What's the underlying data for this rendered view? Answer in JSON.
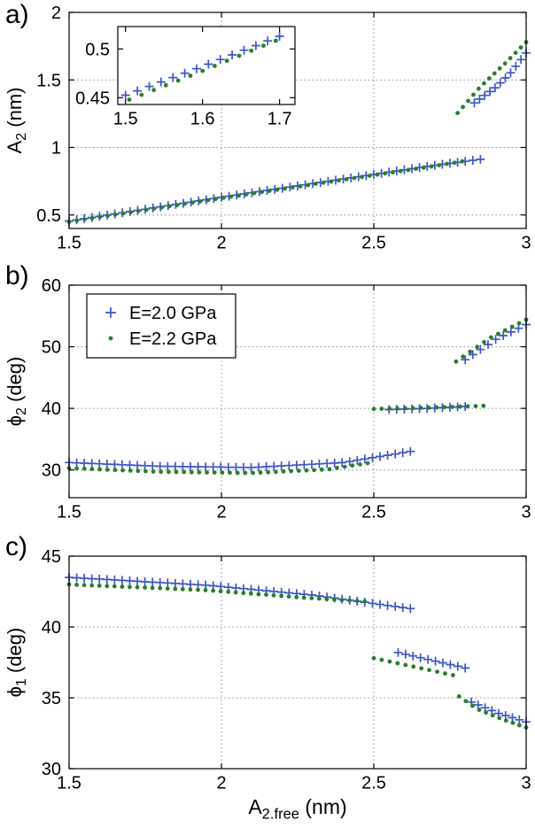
{
  "figure": {
    "background": "#ffffff",
    "axis_color": "#000000",
    "grid_color": "#8c8c8c",
    "panel_letters": [
      "a)",
      "b)",
      "c)"
    ],
    "xlabel": {
      "main": "A",
      "sub": "2.free",
      "rest": " (nm)"
    }
  },
  "legend": {
    "items": [
      {
        "label": "E=2.0 GPa",
        "marker": "plus",
        "color": "#3f56c6"
      },
      {
        "label": "E=2.2 GPa",
        "marker": "dot",
        "color": "#2b7e2b"
      }
    ]
  },
  "chart_data": [
    {
      "type": "scatter",
      "panel": "a",
      "ylabel": {
        "main": "A",
        "sub": "2",
        "rest": " (nm)"
      },
      "xlim": [
        1.5,
        3.0
      ],
      "ylim": [
        0.4,
        2.0
      ],
      "xticks": [
        1.5,
        2,
        2.5,
        3
      ],
      "xtick_labels": [
        "1.5",
        "2",
        "2.5",
        "3"
      ],
      "yticks": [
        0.5,
        1,
        1.5,
        2
      ],
      "ytick_labels": [
        "0.5",
        "1",
        "1.5",
        "2"
      ],
      "grid": true,
      "series": [
        {
          "name": "E=2.0 GPa",
          "marker": "plus",
          "color": "#3f56c6",
          "branches": [
            {
              "n": 55,
              "pts": [
                [
                  1.5,
                  0.455
                ],
                [
                  2.0,
                  0.63
                ],
                [
                  2.5,
                  0.8
                ],
                [
                  2.7,
                  0.868
                ],
                [
                  2.85,
                  0.912
                ]
              ]
            },
            {
              "n": 11,
              "pts": [
                [
                  2.83,
                  1.33
                ],
                [
                  2.9,
                  1.445
                ],
                [
                  2.95,
                  1.555
                ],
                [
                  3.0,
                  1.7
                ]
              ]
            }
          ]
        },
        {
          "name": "E=2.2 GPa",
          "marker": "dot",
          "color": "#2b7e2b",
          "branches": [
            {
              "n": 52,
              "pts": [
                [
                  1.5,
                  0.45
                ],
                [
                  2.0,
                  0.625
                ],
                [
                  2.5,
                  0.795
                ],
                [
                  2.7,
                  0.863
                ],
                [
                  2.79,
                  0.897
                ]
              ]
            },
            {
              "n": 14,
              "pts": [
                [
                  2.775,
                  1.255
                ],
                [
                  2.85,
                  1.45
                ],
                [
                  2.93,
                  1.62
                ],
                [
                  3.0,
                  1.78
                ]
              ]
            }
          ]
        }
      ],
      "inset": {
        "xlim": [
          1.49,
          1.72
        ],
        "ylim": [
          0.443,
          0.523
        ],
        "xticks": [
          1.5,
          1.6,
          1.7
        ],
        "xtick_labels": [
          "1.5",
          "1.6",
          "1.7"
        ],
        "yticks": [
          0.45,
          0.5
        ],
        "ytick_labels": [
          "0.45",
          "0.5"
        ],
        "grid": false,
        "series": [
          {
            "name": "E=2.0 GPa",
            "marker": "plus",
            "color": "#3f56c6",
            "branches": [
              {
                "n": 14,
                "pts": [
                  [
                    1.5,
                    0.4525
                  ],
                  [
                    1.6,
                    0.482
                  ],
                  [
                    1.7,
                    0.513
                  ]
                ]
              }
            ]
          },
          {
            "name": "E=2.2 GPa",
            "marker": "dot",
            "color": "#2b7e2b",
            "branches": [
              {
                "n": 13,
                "pts": [
                  [
                    1.505,
                    0.448
                  ],
                  [
                    1.6,
                    0.4775
                  ],
                  [
                    1.695,
                    0.5085
                  ]
                ]
              }
            ]
          }
        ]
      }
    },
    {
      "type": "scatter",
      "panel": "b",
      "ylabel": {
        "main": "ϕ",
        "sub": "2",
        "rest": " (deg)"
      },
      "xlim": [
        1.5,
        3.0
      ],
      "ylim": [
        25.5,
        60
      ],
      "xticks": [
        1.5,
        2,
        2.5,
        3
      ],
      "xtick_labels": [
        "1.5",
        "2",
        "2.5",
        "3"
      ],
      "yticks": [
        30,
        40,
        50,
        60
      ],
      "ytick_labels": [
        "30",
        "40",
        "50",
        "60"
      ],
      "grid": true,
      "series": [
        {
          "name": "E=2.0 GPa",
          "marker": "plus",
          "color": "#3f56c6",
          "branches": [
            {
              "n": 46,
              "pts": [
                [
                  1.5,
                  31.2
                ],
                [
                  1.8,
                  30.6
                ],
                [
                  2.1,
                  30.4
                ],
                [
                  2.4,
                  31.2
                ],
                [
                  2.62,
                  33.0
                ]
              ]
            },
            {
              "n": 11,
              "pts": [
                [
                  2.55,
                  39.8
                ],
                [
                  2.68,
                  40.0
                ],
                [
                  2.8,
                  40.3
                ]
              ]
            },
            {
              "n": 9,
              "pts": [
                [
                  2.8,
                  47.9
                ],
                [
                  2.9,
                  51.2
                ],
                [
                  3.0,
                  53.6
                ]
              ]
            }
          ]
        },
        {
          "name": "E=2.2 GPa",
          "marker": "dot",
          "color": "#2b7e2b",
          "branches": [
            {
              "n": 40,
              "pts": [
                [
                  1.5,
                  30.3
                ],
                [
                  1.8,
                  29.7
                ],
                [
                  2.1,
                  29.5
                ],
                [
                  2.35,
                  30.1
                ],
                [
                  2.48,
                  31.1
                ]
              ]
            },
            {
              "n": 15,
              "pts": [
                [
                  2.5,
                  39.9
                ],
                [
                  2.68,
                  40.1
                ],
                [
                  2.86,
                  40.4
                ]
              ]
            },
            {
              "n": 11,
              "pts": [
                [
                  2.77,
                  47.6
                ],
                [
                  2.88,
                  51.4
                ],
                [
                  3.0,
                  54.4
                ]
              ]
            }
          ]
        }
      ]
    },
    {
      "type": "scatter",
      "panel": "c",
      "ylabel": {
        "main": "ϕ",
        "sub": "1",
        "rest": " (deg)"
      },
      "xlim": [
        1.5,
        3.0
      ],
      "ylim": [
        30,
        45
      ],
      "xticks": [
        1.5,
        2,
        2.5,
        3
      ],
      "xtick_labels": [
        "1.5",
        "2",
        "2.5",
        "3"
      ],
      "yticks": [
        30,
        35,
        40,
        45
      ],
      "ytick_labels": [
        "30",
        "35",
        "40",
        "45"
      ],
      "grid": true,
      "series": [
        {
          "name": "E=2.0 GPa",
          "marker": "plus",
          "color": "#3f56c6",
          "branches": [
            {
              "n": 46,
              "pts": [
                [
                  1.5,
                  43.5
                ],
                [
                  1.95,
                  42.95
                ],
                [
                  2.3,
                  42.25
                ],
                [
                  2.62,
                  41.3
                ]
              ]
            },
            {
              "n": 10,
              "pts": [
                [
                  2.58,
                  38.2
                ],
                [
                  2.7,
                  37.6
                ],
                [
                  2.8,
                  37.1
                ]
              ]
            },
            {
              "n": 9,
              "pts": [
                [
                  2.82,
                  34.7
                ],
                [
                  2.91,
                  33.9
                ],
                [
                  3.0,
                  33.3
                ]
              ]
            }
          ]
        },
        {
          "name": "E=2.2 GPa",
          "marker": "dot",
          "color": "#2b7e2b",
          "branches": [
            {
              "n": 40,
              "pts": [
                [
                  1.5,
                  43.0
                ],
                [
                  1.95,
                  42.6
                ],
                [
                  2.25,
                  42.1
                ],
                [
                  2.47,
                  41.8
                ]
              ]
            },
            {
              "n": 11,
              "pts": [
                [
                  2.5,
                  37.8
                ],
                [
                  2.63,
                  37.2
                ],
                [
                  2.76,
                  36.6
                ]
              ]
            },
            {
              "n": 11,
              "pts": [
                [
                  2.78,
                  35.1
                ],
                [
                  2.84,
                  34.2
                ],
                [
                  2.92,
                  33.5
                ],
                [
                  3.0,
                  32.9
                ]
              ]
            }
          ]
        }
      ]
    }
  ]
}
